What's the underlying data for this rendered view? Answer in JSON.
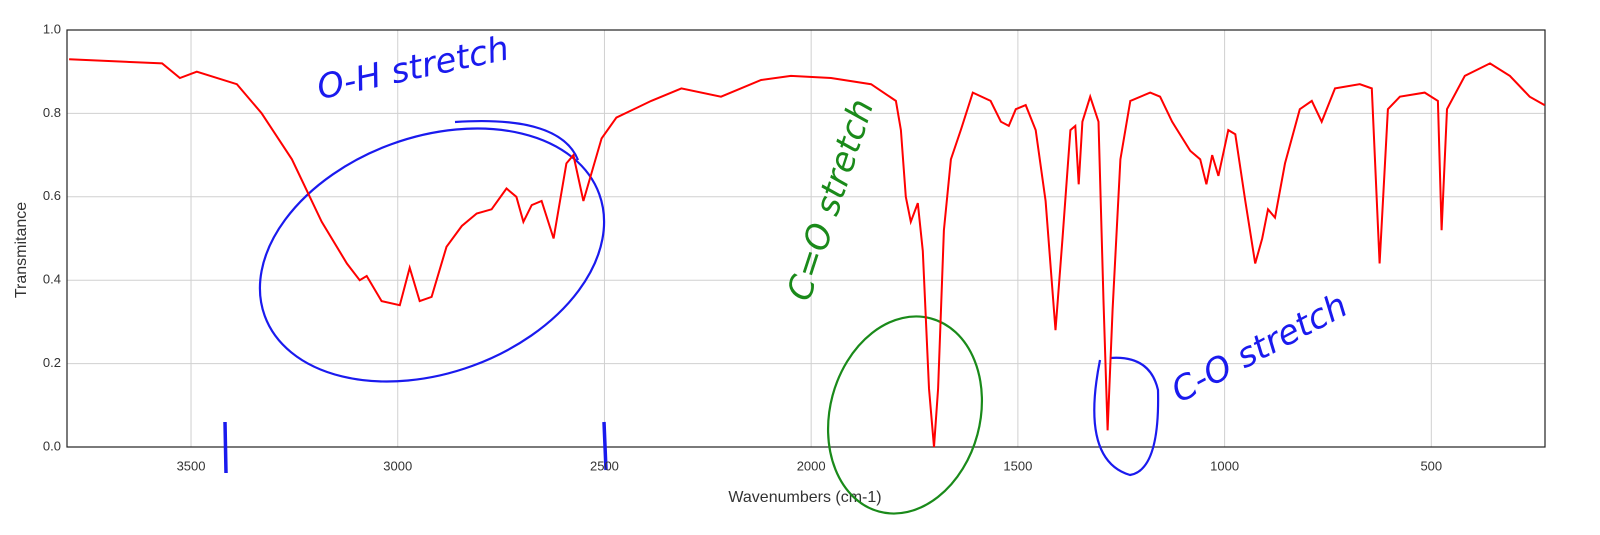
{
  "chart_data": {
    "type": "line",
    "x_label": "Wavenumbers (cm-1)",
    "y_label": "Transmitance",
    "xlim": [
      3800,
      225
    ],
    "ylim": [
      0,
      1
    ],
    "xticks": [
      3500,
      3000,
      2500,
      2000,
      1500,
      1000,
      500
    ],
    "yticks": [
      {
        "value": 0,
        "label": "0.0"
      },
      0.2,
      0.4,
      0.6,
      0.8,
      {
        "value": 1,
        "label": "1.0"
      }
    ],
    "grid": true,
    "x_reversed": true,
    "series": [
      {
        "color": "#ff0000",
        "x": [
          3795,
          3570,
          3527,
          3486,
          3389,
          3329,
          3256,
          3184,
          3123,
          3092,
          3075,
          3039,
          2995,
          2971,
          2947,
          2918,
          2882,
          2845,
          2809,
          2773,
          2737,
          2713,
          2696,
          2676,
          2652,
          2623,
          2592,
          2575,
          2551,
          2507,
          2471,
          2387,
          2314,
          2218,
          2121,
          2049,
          1952,
          1855,
          1795,
          1783,
          1771,
          1759,
          1742,
          1730,
          1715,
          1703,
          1693,
          1679,
          1662,
          1638,
          1609,
          1566,
          1541,
          1522,
          1505,
          1481,
          1457,
          1433,
          1409,
          1392,
          1373,
          1361,
          1353,
          1344,
          1325,
          1305,
          1293,
          1283,
          1271,
          1252,
          1228,
          1180,
          1156,
          1127,
          1083,
          1059,
          1044,
          1030,
          1015,
          991,
          974,
          950,
          926,
          909,
          895,
          878,
          854,
          818,
          789,
          765,
          733,
          673,
          644,
          625,
          605,
          576,
          516,
          484,
          475,
          462,
          419,
          358,
          310,
          262,
          226
        ],
        "values": [
          0.93,
          0.92,
          0.885,
          0.9,
          0.87,
          0.8,
          0.69,
          0.54,
          0.44,
          0.4,
          0.41,
          0.35,
          0.34,
          0.43,
          0.35,
          0.36,
          0.48,
          0.53,
          0.56,
          0.57,
          0.62,
          0.6,
          0.54,
          0.58,
          0.59,
          0.5,
          0.68,
          0.7,
          0.59,
          0.74,
          0.79,
          0.83,
          0.86,
          0.84,
          0.88,
          0.89,
          0.885,
          0.87,
          0.83,
          0.76,
          0.6,
          0.54,
          0.585,
          0.47,
          0.14,
          0.0,
          0.14,
          0.52,
          0.69,
          0.76,
          0.85,
          0.83,
          0.78,
          0.77,
          0.81,
          0.82,
          0.76,
          0.59,
          0.28,
          0.5,
          0.76,
          0.77,
          0.63,
          0.78,
          0.84,
          0.78,
          0.35,
          0.04,
          0.33,
          0.69,
          0.83,
          0.85,
          0.84,
          0.78,
          0.71,
          0.69,
          0.63,
          0.7,
          0.65,
          0.76,
          0.75,
          0.59,
          0.44,
          0.5,
          0.57,
          0.55,
          0.68,
          0.81,
          0.83,
          0.78,
          0.86,
          0.87,
          0.86,
          0.44,
          0.81,
          0.84,
          0.85,
          0.83,
          0.52,
          0.81,
          0.89,
          0.92,
          0.89,
          0.84,
          0.82
        ]
      }
    ],
    "annotations": [
      {
        "text": "O-H stretch",
        "color": "#1a1aee"
      },
      {
        "text": "C=O stretch",
        "color": "#1a8a1a"
      },
      {
        "text": "C-O stretch",
        "color": "#1a1aee"
      }
    ]
  }
}
